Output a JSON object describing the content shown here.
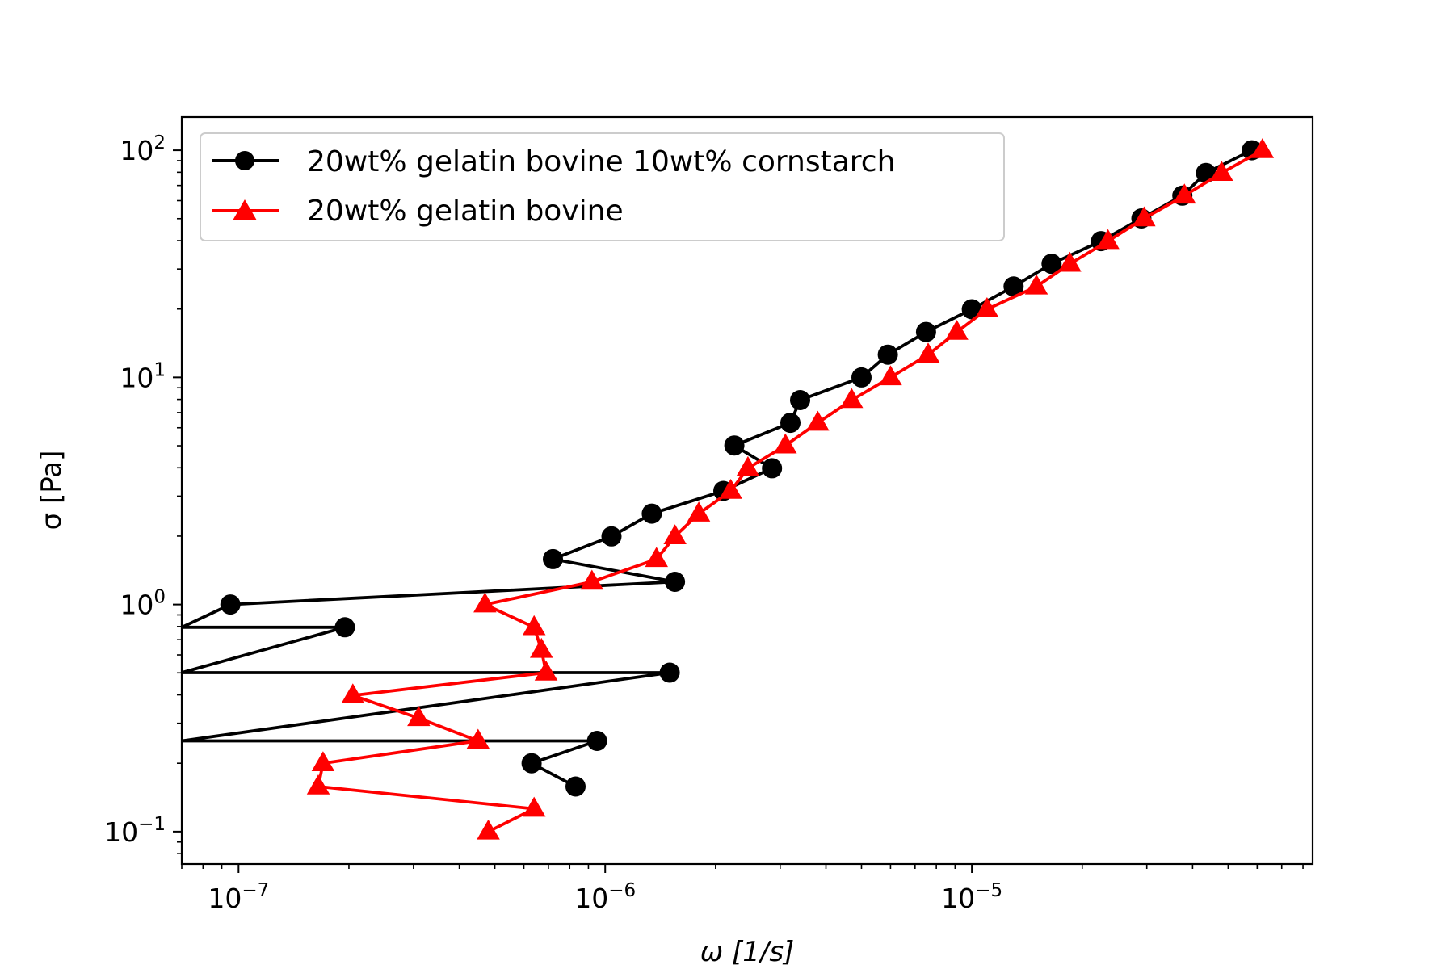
{
  "chart_data": {
    "type": "line",
    "xscale": "log",
    "yscale": "log",
    "xlabel": "ω [1/s]",
    "ylabel": "σ [Pa]",
    "xlim": [
      7e-08,
      8.5e-05
    ],
    "ylim": [
      0.072,
      140
    ],
    "legend_position": "top-left",
    "grid": false,
    "x_ticks": [
      {
        "value": 1e-07,
        "base": "10",
        "exp": "−7"
      },
      {
        "value": 1e-06,
        "base": "10",
        "exp": "−6"
      },
      {
        "value": 1e-05,
        "base": "10",
        "exp": "−5"
      }
    ],
    "y_ticks": [
      {
        "value": 0.1,
        "base": "10",
        "exp": "−1"
      },
      {
        "value": 1,
        "base": "10",
        "exp": "0"
      },
      {
        "value": 10,
        "base": "10",
        "exp": "1"
      },
      {
        "value": 100,
        "base": "10",
        "exp": "2"
      }
    ],
    "series": [
      {
        "name": "20wt% gelatin bovine 10wt% cornstarch",
        "color": "#000000",
        "marker": "circle",
        "points": [
          [
            8.3e-07,
            0.158
          ],
          [
            6.3e-07,
            0.2
          ],
          [
            9.5e-07,
            0.251
          ],
          [
            7e-08,
            0.251
          ],
          [
            1.5e-06,
            0.501
          ],
          [
            7e-08,
            0.501
          ],
          [
            1.95e-07,
            0.794
          ],
          [
            7e-08,
            0.794
          ],
          [
            9.5e-08,
            1.0
          ],
          [
            1.55e-06,
            1.259
          ],
          [
            7.2e-07,
            1.585
          ],
          [
            1.04e-06,
            1.995
          ],
          [
            1.34e-06,
            2.512
          ],
          [
            2.1e-06,
            3.162
          ],
          [
            2.85e-06,
            3.981
          ],
          [
            2.25e-06,
            5.012
          ],
          [
            3.2e-06,
            6.31
          ],
          [
            3.4e-06,
            7.943
          ],
          [
            5e-06,
            10.0
          ],
          [
            5.9e-06,
            12.59
          ],
          [
            7.5e-06,
            15.85
          ],
          [
            1e-05,
            19.95
          ],
          [
            1.3e-05,
            25.12
          ],
          [
            1.65e-05,
            31.62
          ],
          [
            2.25e-05,
            39.81
          ],
          [
            2.9e-05,
            50.12
          ],
          [
            3.75e-05,
            63.1
          ],
          [
            4.35e-05,
            79.43
          ],
          [
            5.8e-05,
            100.0
          ]
        ]
      },
      {
        "name": "20wt% gelatin bovine",
        "color": "#ff0000",
        "marker": "triangle",
        "points": [
          [
            4.8e-07,
            0.1
          ],
          [
            6.4e-07,
            0.126
          ],
          [
            1.65e-07,
            0.158
          ],
          [
            1.7e-07,
            0.2
          ],
          [
            4.5e-07,
            0.251
          ],
          [
            3.1e-07,
            0.316
          ],
          [
            2.05e-07,
            0.398
          ],
          [
            6.9e-07,
            0.501
          ],
          [
            6.7e-07,
            0.631
          ],
          [
            6.4e-07,
            0.794
          ],
          [
            4.7e-07,
            1.0
          ],
          [
            9.2e-07,
            1.259
          ],
          [
            1.38e-06,
            1.585
          ],
          [
            1.55e-06,
            1.995
          ],
          [
            1.8e-06,
            2.512
          ],
          [
            2.2e-06,
            3.162
          ],
          [
            2.45e-06,
            3.981
          ],
          [
            3.1e-06,
            5.012
          ],
          [
            3.8e-06,
            6.31
          ],
          [
            4.7e-06,
            7.943
          ],
          [
            6e-06,
            10.0
          ],
          [
            7.6e-06,
            12.59
          ],
          [
            9.1e-06,
            15.85
          ],
          [
            1.1e-05,
            19.95
          ],
          [
            1.5e-05,
            25.12
          ],
          [
            1.85e-05,
            31.62
          ],
          [
            2.35e-05,
            39.81
          ],
          [
            2.95e-05,
            50.12
          ],
          [
            3.8e-05,
            63.1
          ],
          [
            4.8e-05,
            79.43
          ],
          [
            6.2e-05,
            100.0
          ]
        ]
      }
    ]
  }
}
